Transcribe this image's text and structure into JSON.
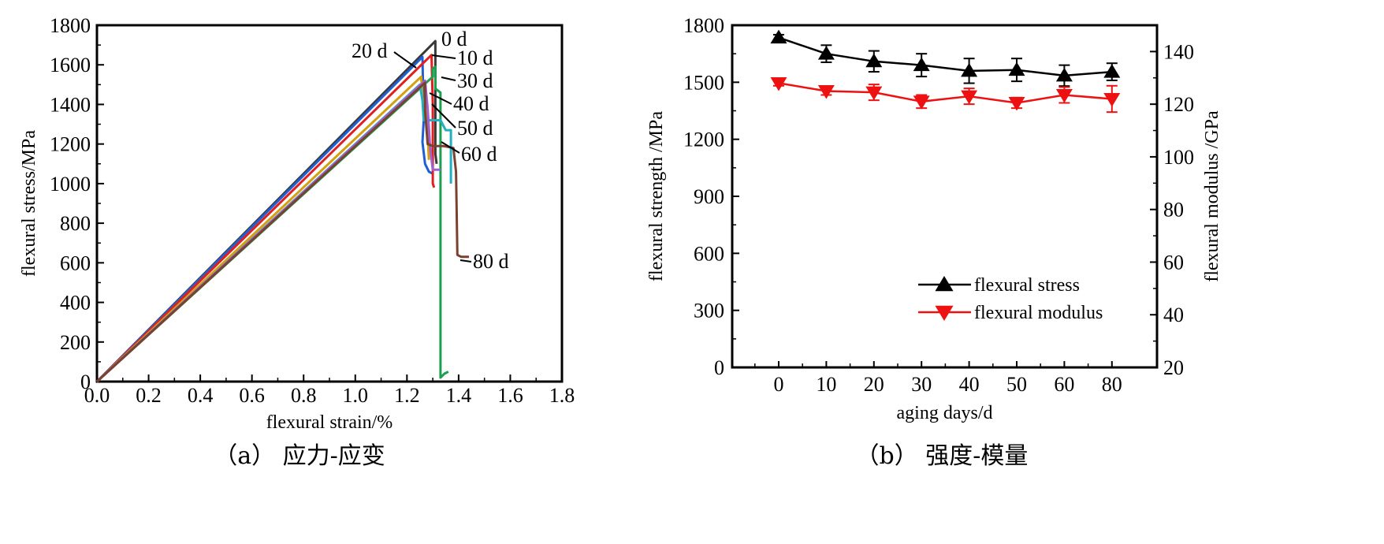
{
  "chart_data": [
    {
      "type": "line",
      "caption": "（a） 应力-应变",
      "xlabel": "flexural strain/%",
      "ylabel": "flexural stress/MPa",
      "xlim": [
        0,
        1.8
      ],
      "ylim": [
        0,
        1800
      ],
      "xticks": [
        "0.0",
        "0.2",
        "0.4",
        "0.6",
        "0.8",
        "1.0",
        "1.2",
        "1.4",
        "1.6",
        "1.8"
      ],
      "yticks": [
        "0",
        "200",
        "400",
        "600",
        "800",
        "1000",
        "1200",
        "1400",
        "1600",
        "1800"
      ],
      "series": [
        {
          "name": "0 d",
          "color": "#3a3a3a",
          "x": [
            0,
            1.31,
            1.31,
            1.315
          ],
          "y": [
            0,
            1720,
            1150,
            1100
          ]
        },
        {
          "name": "20 d",
          "color": "#1f5fd6",
          "x": [
            0,
            1.26,
            1.265,
            1.26,
            1.27,
            1.285,
            1.3
          ],
          "y": [
            0,
            1640,
            1320,
            1210,
            1100,
            1060,
            1050
          ]
        },
        {
          "name": "10 d",
          "color": "#e02020",
          "x": [
            0,
            1.295,
            1.3,
            1.3,
            1.305
          ],
          "y": [
            0,
            1650,
            1400,
            1000,
            980
          ]
        },
        {
          "name": "30 d",
          "color": "#1aa050",
          "x": [
            0,
            1.3,
            1.3,
            1.31,
            1.31,
            1.33,
            1.33,
            1.345,
            1.36
          ],
          "y": [
            0,
            1540,
            1580,
            1590,
            1480,
            1460,
            20,
            40,
            50
          ]
        },
        {
          "name": "40 d",
          "color": "#d4a010",
          "x": [
            0,
            1.255,
            1.26,
            1.275,
            1.285
          ],
          "y": [
            0,
            1540,
            1430,
            1380,
            1120
          ]
        },
        {
          "name": "50 d",
          "color": "#20b0c0",
          "x": [
            0,
            1.25,
            1.26,
            1.265,
            1.3,
            1.33,
            1.35,
            1.37,
            1.37
          ],
          "y": [
            0,
            1500,
            1420,
            1320,
            1320,
            1320,
            1270,
            1270,
            1000
          ]
        },
        {
          "name": "60 d",
          "color": "#a060d0",
          "x": [
            0,
            1.27,
            1.28,
            1.29,
            1.3,
            1.33
          ],
          "y": [
            0,
            1520,
            1380,
            1180,
            1070,
            1070
          ]
        },
        {
          "name": "80 d",
          "color": "#7a4030",
          "x": [
            0,
            1.27,
            1.27,
            1.28,
            1.3,
            1.34,
            1.38,
            1.39,
            1.395,
            1.41,
            1.44
          ],
          "y": [
            0,
            1510,
            1370,
            1200,
            1190,
            1190,
            1180,
            1060,
            640,
            630,
            630
          ]
        }
      ],
      "annotations": [
        "0 d",
        "10 d",
        "20 d",
        "30 d",
        "40 d",
        "50 d",
        "60 d",
        "80 d"
      ]
    },
    {
      "type": "line",
      "caption": "（b） 强度-模量",
      "xlabel": "aging days/d",
      "ylabel": "flexural strength /MPa",
      "ylabel_right": "flexural modulus /GPa",
      "categories": [
        "0",
        "10",
        "20",
        "30",
        "40",
        "50",
        "60",
        "80"
      ],
      "ylim": [
        0,
        1800
      ],
      "ylim_right": [
        20,
        150
      ],
      "yticks": [
        "0",
        "300",
        "600",
        "900",
        "1200",
        "1500",
        "1800"
      ],
      "yticks_right": [
        "20",
        "40",
        "60",
        "80",
        "100",
        "120",
        "140"
      ],
      "series": [
        {
          "name": "flexural stress",
          "color": "#000000",
          "marker": "triangle-up",
          "axis": "left",
          "values": [
            1735,
            1650,
            1610,
            1590,
            1560,
            1565,
            1535,
            1555
          ],
          "errors": [
            15,
            45,
            55,
            60,
            65,
            60,
            55,
            45
          ]
        },
        {
          "name": "flexural modulus",
          "color": "#ee1111",
          "marker": "triangle-down",
          "axis": "right",
          "values": [
            128,
            125,
            124.5,
            121,
            123,
            120.5,
            123.5,
            122
          ],
          "errors": [
            1,
            1.5,
            3,
            2.5,
            3,
            2,
            3,
            5
          ]
        }
      ]
    }
  ]
}
